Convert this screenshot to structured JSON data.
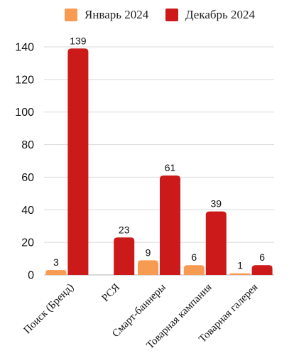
{
  "chart_data": {
    "type": "bar",
    "categories": [
      "Поиск (Бренд)",
      "РСЯ",
      "Смарт-баннеры",
      "Товарная кампания",
      "Товарная галерея"
    ],
    "series": [
      {
        "name": "Январь 2024",
        "color": "#f79a52",
        "values": [
          3,
          null,
          9,
          6,
          1
        ]
      },
      {
        "name": "Декабрь 2024",
        "color": "#cc1a1a",
        "values": [
          139,
          23,
          61,
          39,
          6
        ]
      }
    ],
    "ylim": [
      0,
      140
    ],
    "yticks": [
      0,
      20,
      40,
      60,
      80,
      100,
      120,
      140
    ],
    "grid": true,
    "legend_position": "top"
  }
}
